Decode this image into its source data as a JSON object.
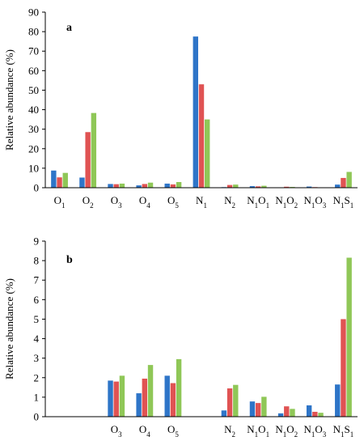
{
  "colors": [
    "#2e75c8",
    "#e05353",
    "#8fc757"
  ],
  "chart_data": [
    {
      "type": "bar",
      "panel_label": "a",
      "ylabel": "Relative abundance (%)",
      "ylim": [
        0,
        90
      ],
      "yticks": [
        0,
        10,
        20,
        30,
        40,
        50,
        60,
        70,
        80,
        90
      ],
      "categories": [
        {
          "base": "O",
          "sub": "1"
        },
        {
          "base": "O",
          "sub": "2"
        },
        {
          "base": "O",
          "sub": "3"
        },
        {
          "base": "O",
          "sub": "4"
        },
        {
          "base": "O",
          "sub": "5"
        },
        {
          "base": "N",
          "sub": "1"
        },
        {
          "base": "N",
          "sub": "2"
        },
        {
          "base": "N",
          "sub": "1",
          "base2": "O",
          "sub2": "1"
        },
        {
          "base": "N",
          "sub": "1",
          "base2": "O",
          "sub2": "2"
        },
        {
          "base": "N",
          "sub": "1",
          "base2": "O",
          "sub2": "3"
        },
        {
          "base": "N",
          "sub": "1",
          "base2": "S",
          "sub2": "1"
        }
      ],
      "series": [
        {
          "values": [
            8.8,
            5.2,
            1.9,
            1.2,
            2.1,
            77.5,
            0.3,
            0.8,
            0.2,
            0.6,
            1.6
          ]
        },
        {
          "values": [
            5.3,
            28.5,
            1.8,
            1.9,
            1.7,
            53.0,
            1.4,
            0.7,
            0.5,
            0.3,
            5.0
          ]
        },
        {
          "values": [
            7.6,
            38.3,
            2.1,
            2.6,
            2.9,
            35.0,
            1.6,
            1.0,
            0.4,
            0.2,
            8.1
          ]
        }
      ]
    },
    {
      "type": "bar",
      "panel_label": "b",
      "ylabel": "Relative abundance (%)",
      "ylim": [
        0,
        9
      ],
      "yticks": [
        0,
        1,
        2,
        3,
        4,
        5,
        6,
        7,
        8,
        9
      ],
      "categories": [
        {
          "base": "",
          "sub": ""
        },
        {
          "base": "",
          "sub": ""
        },
        {
          "base": "O",
          "sub": "3"
        },
        {
          "base": "O",
          "sub": "4"
        },
        {
          "base": "O",
          "sub": "5"
        },
        {
          "base": "",
          "sub": ""
        },
        {
          "base": "N",
          "sub": "2"
        },
        {
          "base": "N",
          "sub": "1",
          "base2": "O",
          "sub2": "1"
        },
        {
          "base": "N",
          "sub": "1",
          "base2": "O",
          "sub2": "2"
        },
        {
          "base": "N",
          "sub": "1",
          "base2": "O",
          "sub2": "3"
        },
        {
          "base": "N",
          "sub": "1",
          "base2": "S",
          "sub2": "1"
        }
      ],
      "series": [
        {
          "values": [
            null,
            null,
            1.85,
            1.2,
            2.1,
            null,
            0.32,
            0.78,
            0.17,
            0.58,
            1.65
          ]
        },
        {
          "values": [
            null,
            null,
            1.8,
            1.95,
            1.72,
            null,
            1.45,
            0.7,
            0.53,
            0.25,
            5.0
          ]
        },
        {
          "values": [
            null,
            null,
            2.1,
            2.65,
            2.95,
            null,
            1.63,
            1.02,
            0.4,
            0.2,
            8.15
          ]
        }
      ]
    }
  ]
}
